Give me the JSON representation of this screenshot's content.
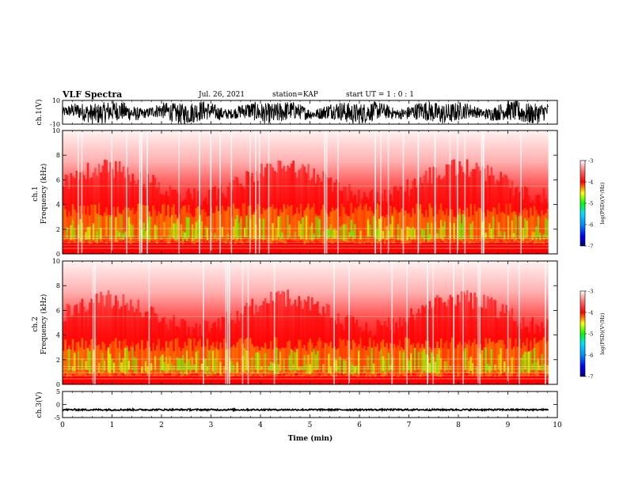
{
  "header": {
    "title": "VLF Spectra",
    "date": "Jul. 26, 2021",
    "station": "station=KAP",
    "start": "start UT =  1 : 0 : 1"
  },
  "chart_data": [
    {
      "type": "line",
      "panel": "ch.1 waveform",
      "ylabel": "ch.1(V)",
      "ylim": [
        -10,
        10
      ],
      "yticks": [
        "10",
        "-10"
      ],
      "xlim": [
        0,
        10
      ],
      "data_extent_x": [
        0,
        9.82
      ],
      "series": [
        {
          "values_description_omitted": true,
          "typical_range": [
            -8.5,
            9.5
          ]
        }
      ],
      "color": "#000000"
    },
    {
      "type": "heatmap",
      "panel": "ch.1 spectrogram",
      "ylabel": "ch.1\nFrequency (kHz)",
      "ylim": [
        0,
        10
      ],
      "yticks": [
        "0",
        "2",
        "4",
        "6",
        "8",
        "10"
      ],
      "xlim": [
        0,
        10
      ],
      "data_extent_x": [
        0,
        9.82
      ],
      "colorbar": {
        "label": "log(PSD)(V²/Hz)",
        "range": [
          -7,
          -3
        ],
        "ticks": [
          "-3",
          "-4",
          "-5",
          "-6",
          "-7"
        ]
      },
      "bands": [
        {
          "name": "green/yellow band",
          "freq_khz": [
            0.8,
            3.2
          ],
          "level": -4.8
        },
        {
          "name": "red region",
          "freq_khz": [
            0,
            6.0
          ],
          "level": -4.1
        },
        {
          "name": "white noise region",
          "freq_khz": [
            6.0,
            10
          ],
          "level": -3.2
        }
      ]
    },
    {
      "type": "heatmap",
      "panel": "ch.2 spectrogram",
      "ylabel": "ch.2\nFrequency (kHz)",
      "ylim": [
        0,
        10
      ],
      "yticks": [
        "0",
        "2",
        "4",
        "6",
        "8",
        "10"
      ],
      "xlim": [
        0,
        10
      ],
      "data_extent_x": [
        0,
        9.82
      ],
      "colorbar": {
        "label": "log(PSD)(V²/Hz)",
        "range": [
          -7,
          -3
        ],
        "ticks": [
          "-3",
          "-4",
          "-5",
          "-6",
          "-7"
        ]
      },
      "bands": [
        {
          "name": "green/yellow band",
          "freq_khz": [
            0.6,
            3.0
          ],
          "level": -4.8
        },
        {
          "name": "red region",
          "freq_khz": [
            0,
            6.0
          ],
          "level": -4.1
        },
        {
          "name": "white noise region",
          "freq_khz": [
            6.0,
            10
          ],
          "level": -3.2
        }
      ]
    },
    {
      "type": "line",
      "panel": "ch.3 waveform",
      "ylabel": "ch.3(V)",
      "ylim": [
        -5,
        5
      ],
      "yticks": [
        "5",
        "0",
        "-5"
      ],
      "xlim": [
        0,
        10
      ],
      "data_extent_x": [
        0,
        9.82
      ],
      "series": [
        {
          "typical_value": -2.0,
          "jitter": 0.3
        }
      ],
      "xlabel": "Time (min)",
      "xticks": [
        "0",
        "1",
        "2",
        "3",
        "4",
        "5",
        "6",
        "7",
        "8",
        "9",
        "10"
      ]
    }
  ]
}
